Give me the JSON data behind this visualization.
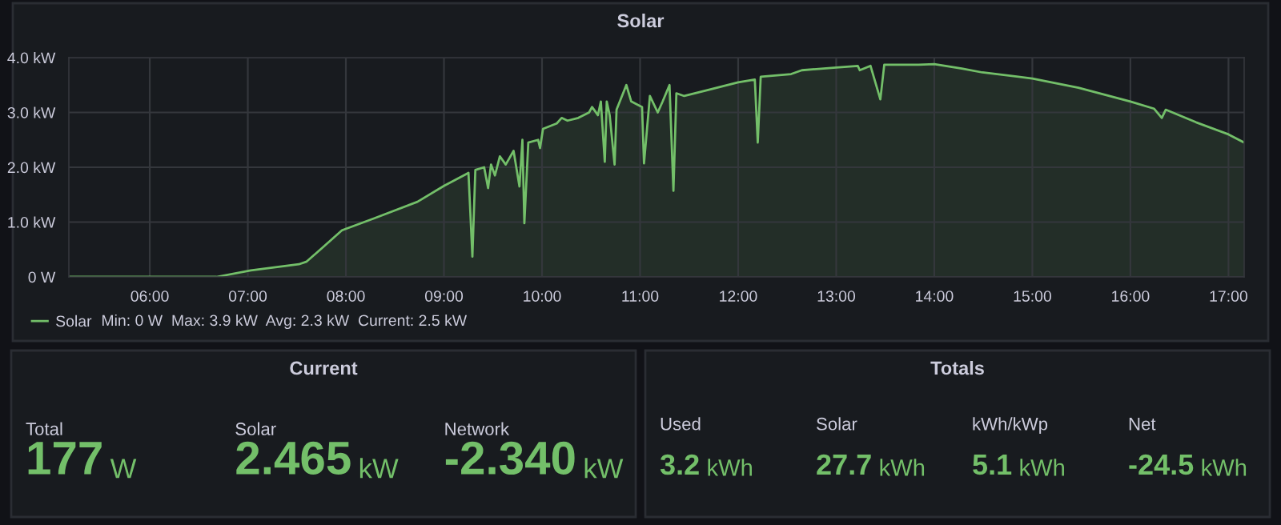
{
  "chart_data": [
    {
      "type": "area",
      "title": "Solar",
      "x": [
        5.175,
        6.68,
        7.03,
        7.52,
        7.6,
        7.74,
        7.96,
        8.29,
        8.73,
        9.0,
        9.22,
        9.25,
        9.29,
        9.32,
        9.41,
        9.45,
        9.48,
        9.52,
        9.57,
        9.63,
        9.71,
        9.77,
        9.8,
        9.82,
        9.86,
        9.96,
        9.98,
        10.01,
        10.15,
        10.2,
        10.26,
        10.37,
        10.48,
        10.51,
        10.57,
        10.6,
        10.64,
        10.66,
        10.69,
        10.74,
        10.76,
        10.86,
        10.91,
        11.02,
        11.04,
        11.1,
        11.18,
        11.23,
        11.3,
        11.34,
        11.37,
        11.45,
        11.67,
        12.0,
        12.17,
        12.2,
        12.23,
        12.54,
        12.65,
        13.0,
        13.22,
        13.24,
        13.35,
        13.45,
        13.49,
        13.84,
        14.0,
        14.28,
        14.49,
        15.0,
        15.47,
        16.0,
        16.24,
        16.32,
        16.36,
        16.67,
        17.0,
        17.16
      ],
      "series": [
        {
          "name": "Solar",
          "color": "#73bf69",
          "values": [
            0,
            0,
            0.12,
            0.23,
            0.28,
            0.5,
            0.85,
            1.07,
            1.37,
            1.66,
            1.87,
            1.9,
            0.37,
            1.95,
            2.0,
            1.62,
            2.05,
            1.85,
            2.2,
            2.05,
            2.3,
            1.65,
            2.5,
            0.98,
            2.45,
            2.5,
            2.35,
            2.7,
            2.8,
            2.9,
            2.85,
            2.9,
            3.0,
            3.1,
            2.95,
            3.2,
            2.1,
            3.2,
            2.95,
            2.05,
            3.05,
            3.5,
            3.2,
            3.1,
            2.07,
            3.3,
            3.0,
            3.2,
            3.5,
            1.57,
            3.35,
            3.3,
            3.4,
            3.55,
            3.6,
            2.45,
            3.65,
            3.7,
            3.77,
            3.82,
            3.85,
            3.77,
            3.85,
            3.24,
            3.87,
            3.87,
            3.88,
            3.8,
            3.73,
            3.62,
            3.45,
            3.2,
            3.07,
            2.9,
            3.05,
            2.82,
            2.6,
            2.45
          ]
        }
      ],
      "xlim": [
        5.175,
        17.16
      ],
      "ylim": [
        0,
        4.0
      ],
      "xticks": [
        {
          "value": 6,
          "label": "06:00"
        },
        {
          "value": 7,
          "label": "07:00"
        },
        {
          "value": 8,
          "label": "08:00"
        },
        {
          "value": 9,
          "label": "09:00"
        },
        {
          "value": 10,
          "label": "10:00"
        },
        {
          "value": 11,
          "label": "11:00"
        },
        {
          "value": 12,
          "label": "12:00"
        },
        {
          "value": 13,
          "label": "13:00"
        },
        {
          "value": 14,
          "label": "14:00"
        },
        {
          "value": 15,
          "label": "15:00"
        },
        {
          "value": 16,
          "label": "16:00"
        },
        {
          "value": 17,
          "label": "17:00"
        }
      ],
      "yticks": [
        {
          "value": 0,
          "label": "0 W"
        },
        {
          "value": 1,
          "label": "1.0 kW"
        },
        {
          "value": 2,
          "label": "2.0 kW"
        },
        {
          "value": 3,
          "label": "3.0 kW"
        },
        {
          "value": 4,
          "label": "4.0 kW"
        }
      ],
      "grid": true,
      "legend": "bottom left",
      "annotations": [
        "Min: 0 W  Max: 3.9 kW  Avg: 2.3 kW  Current: 2.5 kW"
      ]
    },
    {
      "type": "other",
      "title": "Current",
      "categories": [
        "Total",
        "Solar",
        "Network"
      ],
      "value_labels": [
        "177 W",
        "2.465 kW",
        "-2.340 kW"
      ]
    },
    {
      "type": "other",
      "title": "Totals",
      "categories": [
        "Used",
        "Solar",
        "kWh/kWp",
        "Net"
      ],
      "value_labels": [
        "3.2 kWh",
        "27.7 kWh",
        "5.1 kWh",
        "-24.5 kWh"
      ]
    }
  ]
}
